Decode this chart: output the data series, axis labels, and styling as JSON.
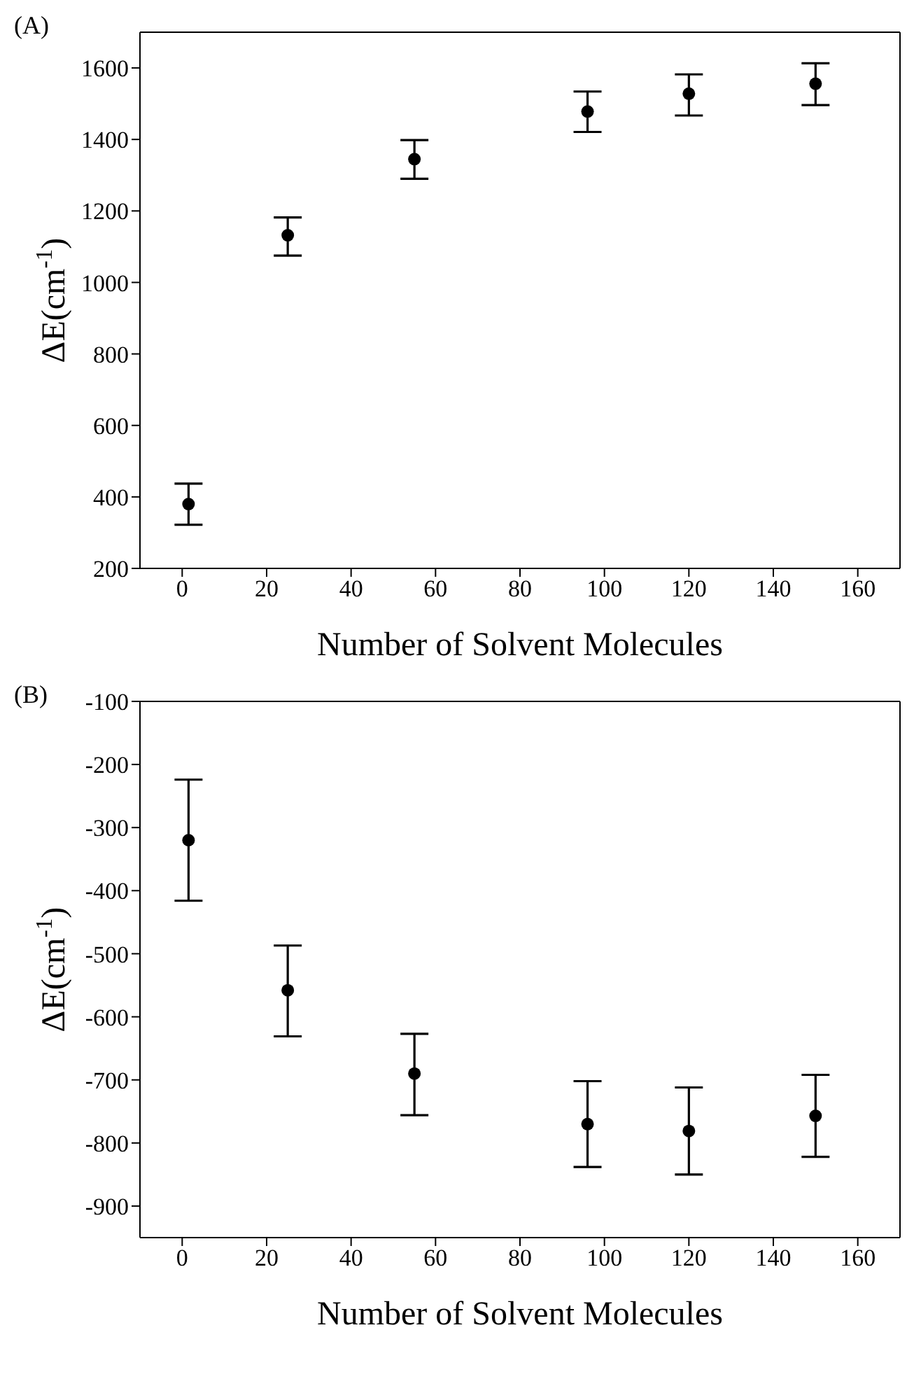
{
  "chart_data": [
    {
      "type": "scatter",
      "title": "(A)",
      "xlabel": "Number of Solvent Molecules",
      "ylabel": "ΔE(cm$^{-1}$)",
      "x": [
        1.5,
        25,
        55,
        96,
        120,
        150
      ],
      "series": [
        {
          "color": "#000000",
          "values": [
            380,
            1132,
            1345,
            1478,
            1528,
            1556
          ],
          "errors": [
            [
              322,
              437
            ],
            [
              1075,
              1182
            ],
            [
              1290,
              1398
            ],
            [
              1421,
              1534
            ],
            [
              1467,
              1582
            ],
            [
              1496,
              1613
            ]
          ]
        }
      ],
      "xlim": [
        -10,
        170
      ],
      "xticks": [
        0,
        20,
        40,
        60,
        80,
        100,
        120,
        140,
        160
      ],
      "ylim": [
        200,
        1700
      ],
      "yticks": [
        200,
        400,
        600,
        800,
        1000,
        1200,
        1400,
        1600
      ],
      "marker": "circle"
    },
    {
      "type": "scatter",
      "title": "(B)",
      "xlabel": "Number of Solvent Molecules",
      "ylabel": "ΔE(cm$^{-1}$)",
      "x": [
        1.5,
        25,
        55,
        96,
        120,
        150
      ],
      "series": [
        {
          "color": "#000000",
          "values": [
            -320,
            -558,
            -690,
            -770,
            -781,
            -757
          ],
          "errors": [
            [
              -416,
              -224
            ],
            [
              -631,
              -487
            ],
            [
              -756,
              -627
            ],
            [
              -838,
              -702
            ],
            [
              -850,
              -712
            ],
            [
              -822,
              -692
            ]
          ]
        }
      ],
      "xlim": [
        -10,
        170
      ],
      "xticks": [
        0,
        20,
        40,
        60,
        80,
        100,
        120,
        140,
        160
      ],
      "ylim": [
        -950,
        -100
      ],
      "yticks": [
        -100,
        -200,
        -300,
        -400,
        -500,
        -600,
        -700,
        -800,
        -900
      ],
      "marker": "circle"
    }
  ]
}
